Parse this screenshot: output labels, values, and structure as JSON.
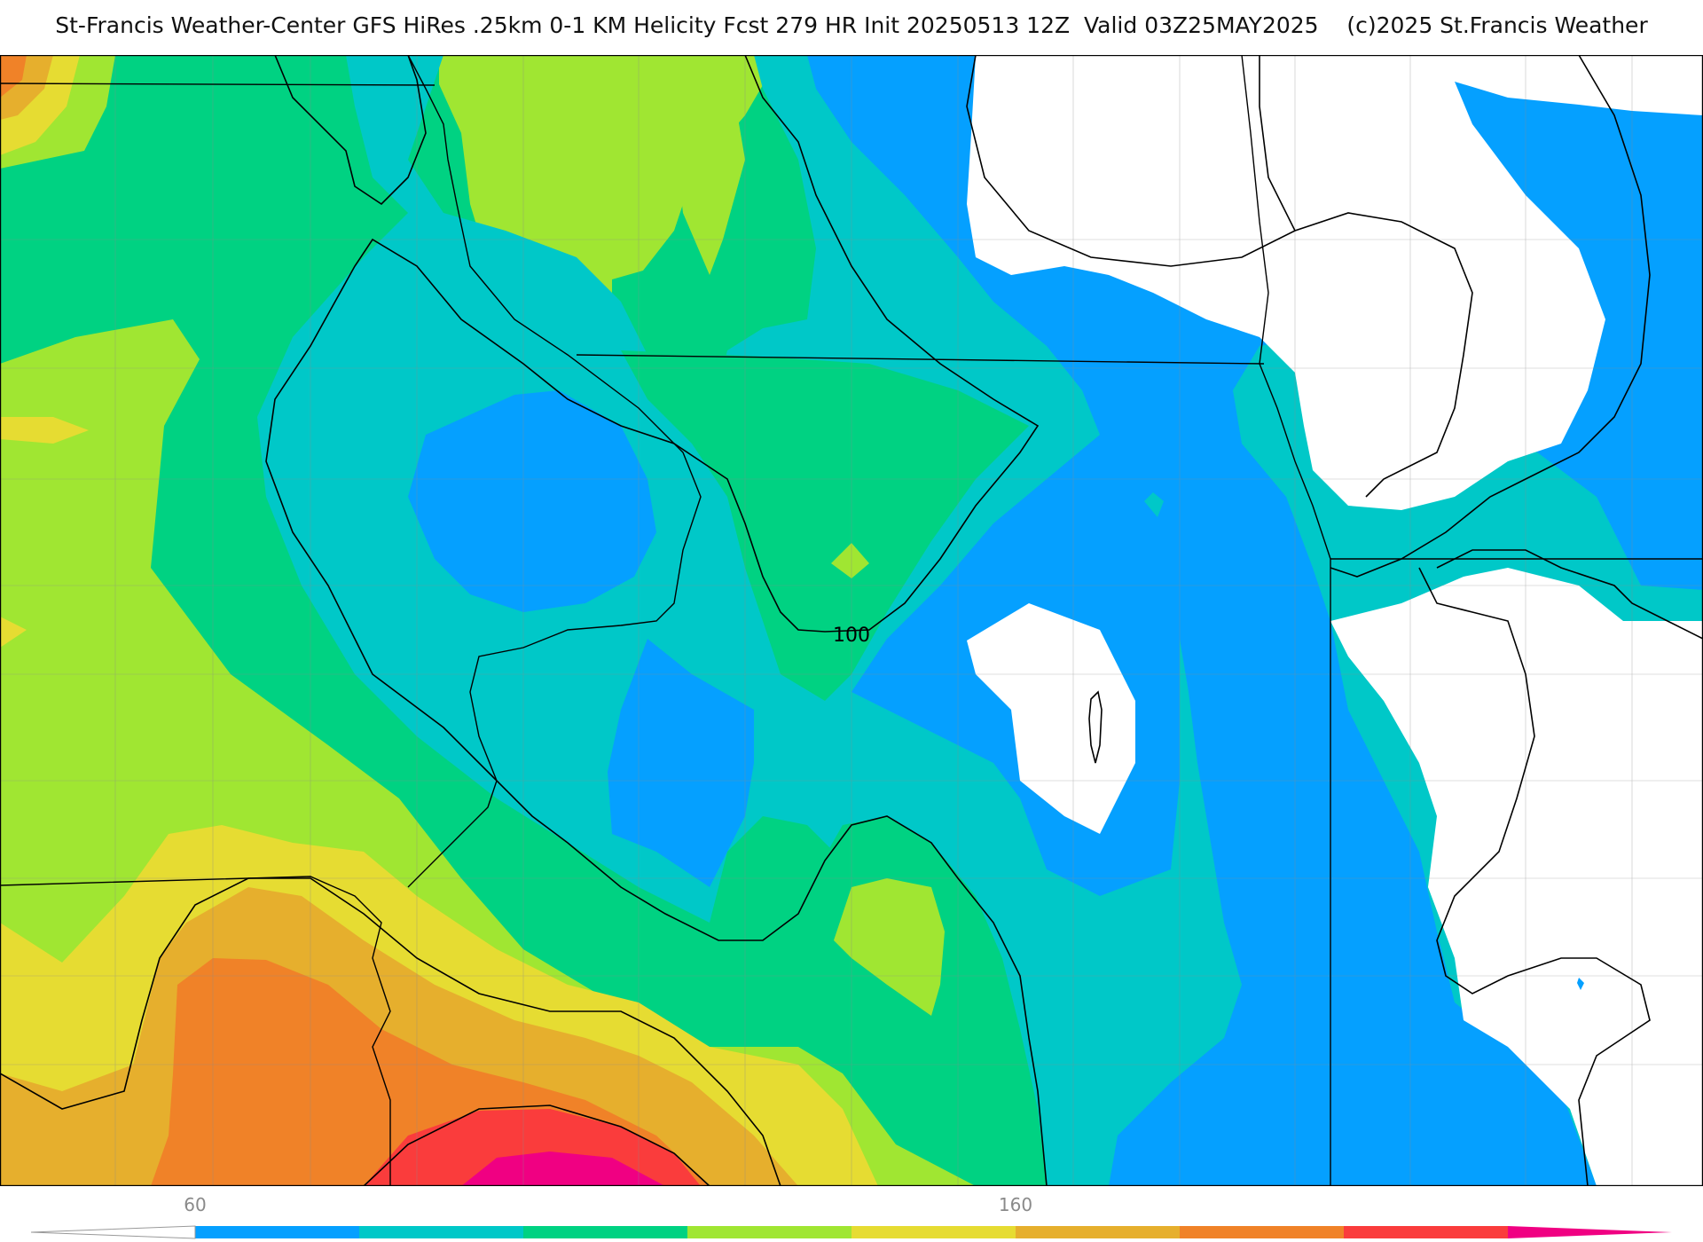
{
  "title": "St-Francis Weather-Center GFS HiRes .25km 0-1 KM Helicity Fcst 279 HR Init 20250513 12Z  Valid 03Z25MAY2025    (c)2025 St.Francis Weather",
  "contour_label": "100",
  "colors": {
    "white": "#ffffff",
    "blue": "#05a0ff",
    "cyan": "#00c8c8",
    "green": "#00d282",
    "yellowgreen": "#a0e632",
    "yellow": "#e6dc32",
    "goldorange": "#e6af2d",
    "orange": "#f08228",
    "red": "#fa3c3c",
    "magenta": "#f00082"
  },
  "legend": {
    "tick_labels": [
      "60",
      "160"
    ],
    "bins": [
      "#05a0ff",
      "#00c8c8",
      "#00d282",
      "#a0e632",
      "#e6dc32",
      "#e6af2d",
      "#f08228",
      "#fa3c3c"
    ],
    "under_color": "#ffffff",
    "over_color": "#f00082"
  }
}
